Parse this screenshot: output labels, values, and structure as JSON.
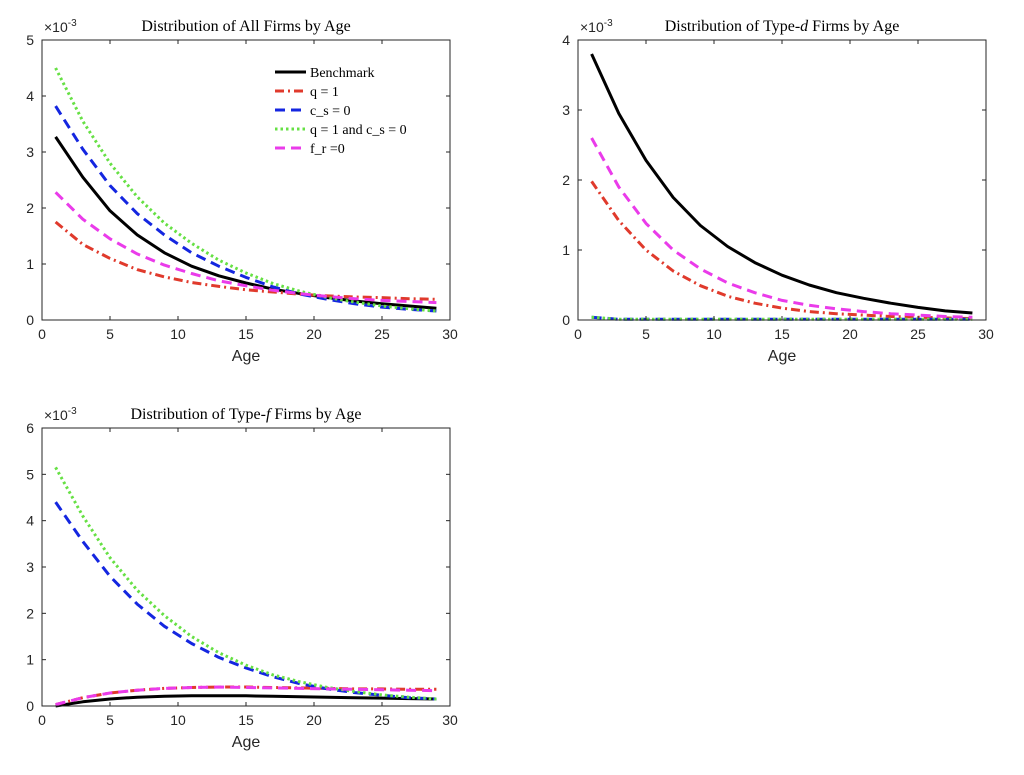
{
  "chart_data": [
    {
      "type": "line",
      "title_parts": [
        "Distribution of All Firms by Age"
      ],
      "xlabel": "Age",
      "ylabel": "",
      "exponent_label": "×10",
      "exponent_power": "-3",
      "xlim": [
        0,
        30
      ],
      "ylim": [
        0,
        5
      ],
      "xticks": [
        "0",
        "5",
        "10",
        "15",
        "20",
        "25",
        "30"
      ],
      "yticks": [
        "0",
        "1",
        "2",
        "3",
        "4",
        "5"
      ],
      "legend": {
        "position": "top-right",
        "entries": [
          "Benchmark",
          "q = 1",
          "c_s = 0",
          "q = 1 and c_s = 0",
          "f_r =0"
        ]
      },
      "x": [
        1,
        3,
        5,
        7,
        9,
        11,
        13,
        15,
        17,
        19,
        21,
        23,
        25,
        27,
        29
      ],
      "series": [
        {
          "name": "Benchmark",
          "color": "#000000",
          "style": "solid",
          "values": [
            3.27,
            2.55,
            1.95,
            1.52,
            1.2,
            0.96,
            0.79,
            0.66,
            0.55,
            0.47,
            0.4,
            0.34,
            0.29,
            0.25,
            0.21
          ]
        },
        {
          "name": "q = 1",
          "color": "#e03a2c",
          "style": "dashdot",
          "values": [
            1.75,
            1.35,
            1.1,
            0.9,
            0.77,
            0.67,
            0.6,
            0.54,
            0.5,
            0.46,
            0.43,
            0.41,
            0.4,
            0.38,
            0.37
          ]
        },
        {
          "name": "c_s = 0",
          "color": "#1426e0",
          "style": "dashed",
          "values": [
            3.82,
            3.05,
            2.4,
            1.9,
            1.52,
            1.2,
            0.96,
            0.76,
            0.59,
            0.46,
            0.37,
            0.29,
            0.23,
            0.19,
            0.16
          ]
        },
        {
          "name": "q = 1 and c_s = 0",
          "color": "#66e044",
          "style": "dotted",
          "values": [
            4.5,
            3.55,
            2.8,
            2.2,
            1.73,
            1.37,
            1.07,
            0.84,
            0.65,
            0.51,
            0.4,
            0.32,
            0.25,
            0.2,
            0.16
          ]
        },
        {
          "name": "f_r =0",
          "color": "#ea3bea",
          "style": "dashed",
          "values": [
            2.28,
            1.8,
            1.45,
            1.18,
            0.98,
            0.83,
            0.7,
            0.61,
            0.53,
            0.47,
            0.42,
            0.38,
            0.35,
            0.33,
            0.31
          ]
        }
      ]
    },
    {
      "type": "line",
      "title_parts": [
        "Distribution of Type-",
        "d",
        " Firms by Age"
      ],
      "xlabel": "Age",
      "ylabel": "",
      "exponent_label": "×10",
      "exponent_power": "-3",
      "xlim": [
        0,
        30
      ],
      "ylim": [
        0,
        4
      ],
      "xticks": [
        "0",
        "5",
        "10",
        "15",
        "20",
        "25",
        "30"
      ],
      "yticks": [
        "0",
        "1",
        "2",
        "3",
        "4"
      ],
      "x": [
        1,
        3,
        5,
        7,
        9,
        11,
        13,
        15,
        17,
        19,
        21,
        23,
        25,
        27,
        29
      ],
      "series": [
        {
          "name": "Benchmark",
          "color": "#000000",
          "style": "solid",
          "values": [
            3.8,
            2.95,
            2.28,
            1.75,
            1.35,
            1.05,
            0.82,
            0.64,
            0.5,
            0.39,
            0.31,
            0.24,
            0.18,
            0.13,
            0.1
          ]
        },
        {
          "name": "q = 1",
          "color": "#e03a2c",
          "style": "dashdot",
          "values": [
            1.98,
            1.42,
            1.0,
            0.7,
            0.49,
            0.34,
            0.24,
            0.17,
            0.12,
            0.09,
            0.07,
            0.05,
            0.04,
            0.03,
            0.02
          ]
        },
        {
          "name": "c_s = 0",
          "color": "#1426e0",
          "style": "dashed",
          "values": [
            0.04,
            0.01,
            0.01,
            0.01,
            0.01,
            0.01,
            0.01,
            0.01,
            0.01,
            0.01,
            0.01,
            0.01,
            0.01,
            0.01,
            0.01
          ]
        },
        {
          "name": "q = 1 and c_s = 0",
          "color": "#66e044",
          "style": "dotted",
          "values": [
            0.04,
            0.01,
            0.01,
            0.01,
            0.01,
            0.01,
            0.01,
            0.01,
            0.01,
            0.01,
            0.01,
            0.01,
            0.01,
            0.01,
            0.01
          ]
        },
        {
          "name": "f_r =0",
          "color": "#ea3bea",
          "style": "dashed",
          "values": [
            2.6,
            1.9,
            1.38,
            1.0,
            0.73,
            0.53,
            0.39,
            0.28,
            0.21,
            0.16,
            0.12,
            0.09,
            0.07,
            0.05,
            0.04
          ]
        }
      ]
    },
    {
      "type": "line",
      "title_parts": [
        "Distribution of Type-",
        "f",
        " Firms by Age"
      ],
      "xlabel": "Age",
      "ylabel": "",
      "exponent_label": "×10",
      "exponent_power": "-3",
      "xlim": [
        0,
        30
      ],
      "ylim": [
        0,
        6
      ],
      "xticks": [
        "0",
        "5",
        "10",
        "15",
        "20",
        "25",
        "30"
      ],
      "yticks": [
        "0",
        "1",
        "2",
        "3",
        "4",
        "5",
        "6"
      ],
      "x": [
        1,
        3,
        5,
        7,
        9,
        11,
        13,
        15,
        17,
        19,
        21,
        23,
        25,
        27,
        29
      ],
      "series": [
        {
          "name": "Benchmark",
          "color": "#000000",
          "style": "solid",
          "values": [
            0.0,
            0.09,
            0.15,
            0.19,
            0.21,
            0.22,
            0.22,
            0.22,
            0.21,
            0.2,
            0.19,
            0.18,
            0.17,
            0.16,
            0.15
          ]
        },
        {
          "name": "q = 1",
          "color": "#e03a2c",
          "style": "dashdot",
          "values": [
            0.03,
            0.18,
            0.28,
            0.34,
            0.38,
            0.4,
            0.41,
            0.41,
            0.4,
            0.39,
            0.38,
            0.37,
            0.37,
            0.36,
            0.36
          ]
        },
        {
          "name": "c_s = 0",
          "color": "#1426e0",
          "style": "dashed",
          "values": [
            4.4,
            3.55,
            2.8,
            2.2,
            1.72,
            1.35,
            1.05,
            0.82,
            0.63,
            0.48,
            0.37,
            0.29,
            0.23,
            0.18,
            0.15
          ]
        },
        {
          "name": "q = 1 and c_s = 0",
          "color": "#66e044",
          "style": "dotted",
          "values": [
            5.15,
            4.1,
            3.2,
            2.5,
            1.95,
            1.5,
            1.15,
            0.88,
            0.67,
            0.52,
            0.4,
            0.31,
            0.24,
            0.19,
            0.15
          ]
        },
        {
          "name": "f_r =0",
          "color": "#ea3bea",
          "style": "dashed",
          "values": [
            0.03,
            0.18,
            0.28,
            0.34,
            0.38,
            0.4,
            0.41,
            0.4,
            0.39,
            0.38,
            0.37,
            0.36,
            0.35,
            0.34,
            0.33
          ]
        }
      ]
    }
  ]
}
